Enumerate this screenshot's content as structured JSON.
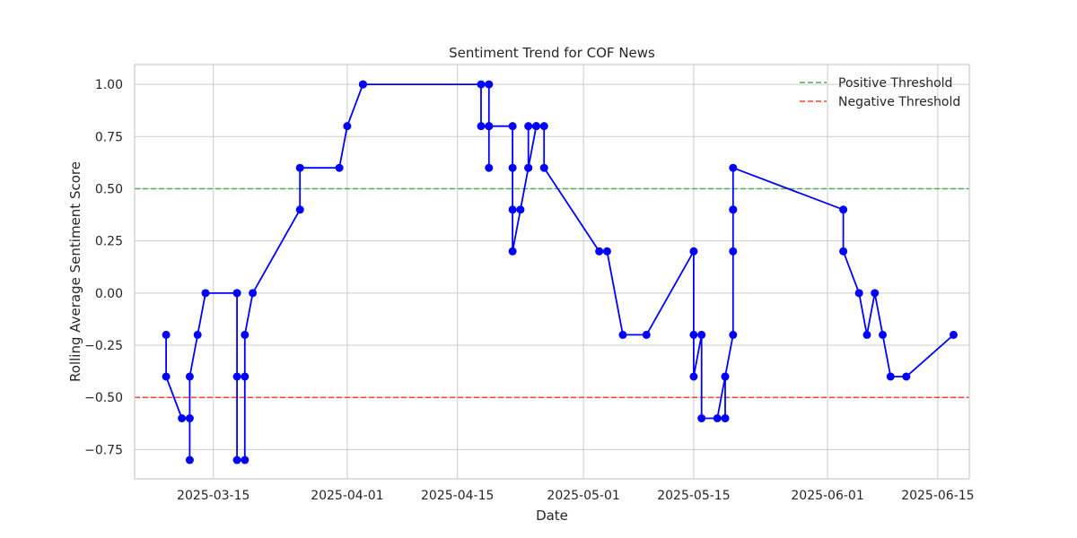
{
  "chart_data": {
    "type": "line",
    "title": "Sentiment Trend for COF News",
    "xlabel": "Date",
    "ylabel": "Rolling Average Sentiment Score",
    "xlim": [
      "2025-03-05",
      "2025-06-19"
    ],
    "ylim": [
      -0.89,
      1.095
    ],
    "x_ticks": [
      "2025-03-15",
      "2025-04-01",
      "2025-04-15",
      "2025-05-01",
      "2025-05-15",
      "2025-06-01",
      "2025-06-15"
    ],
    "y_ticks": [
      1.0,
      0.75,
      0.5,
      0.25,
      0.0,
      -0.25,
      -0.5,
      -0.75
    ],
    "y_tick_labels": [
      "1.00",
      "0.75",
      "0.50",
      "0.25",
      "0.00",
      "−0.25",
      "−0.50",
      "−0.75"
    ],
    "grid": true,
    "legend_position": "top-right",
    "series": [
      {
        "color": "#0000ff",
        "marker": "circle",
        "points": [
          [
            "2025-03-09",
            -0.2
          ],
          [
            "2025-03-09",
            -0.4
          ],
          [
            "2025-03-11",
            -0.6
          ],
          [
            "2025-03-12",
            -0.6
          ],
          [
            "2025-03-12",
            -0.8
          ],
          [
            "2025-03-12",
            -0.4
          ],
          [
            "2025-03-13",
            -0.2
          ],
          [
            "2025-03-14",
            0.0
          ],
          [
            "2025-03-18",
            0.0
          ],
          [
            "2025-03-18",
            0.0
          ],
          [
            "2025-03-18",
            -0.4
          ],
          [
            "2025-03-18",
            -0.8
          ],
          [
            "2025-03-19",
            -0.8
          ],
          [
            "2025-03-19",
            -0.4
          ],
          [
            "2025-03-19",
            -0.2
          ],
          [
            "2025-03-20",
            0.0
          ],
          [
            "2025-03-26",
            0.4
          ],
          [
            "2025-03-26",
            0.6
          ],
          [
            "2025-03-31",
            0.6
          ],
          [
            "2025-04-01",
            0.8
          ],
          [
            "2025-04-03",
            1.0
          ],
          [
            "2025-04-03",
            1.0
          ],
          [
            "2025-04-18",
            1.0
          ],
          [
            "2025-04-18",
            0.8
          ],
          [
            "2025-04-19",
            0.8
          ],
          [
            "2025-04-19",
            0.6
          ],
          [
            "2025-04-19",
            1.0
          ],
          [
            "2025-04-19",
            0.8
          ],
          [
            "2025-04-22",
            0.8
          ],
          [
            "2025-04-22",
            0.6
          ],
          [
            "2025-04-22",
            0.4
          ],
          [
            "2025-04-22",
            0.2
          ],
          [
            "2025-04-23",
            0.4
          ],
          [
            "2025-04-24",
            0.6
          ],
          [
            "2025-04-24",
            0.8
          ],
          [
            "2025-04-24",
            0.6
          ],
          [
            "2025-04-25",
            0.8
          ],
          [
            "2025-04-25",
            0.8
          ],
          [
            "2025-04-26",
            0.8
          ],
          [
            "2025-04-26",
            0.6
          ],
          [
            "2025-05-03",
            0.2
          ],
          [
            "2025-05-04",
            0.2
          ],
          [
            "2025-05-06",
            -0.2
          ],
          [
            "2025-05-09",
            -0.2
          ],
          [
            "2025-05-15",
            0.2
          ],
          [
            "2025-05-15",
            -0.2
          ],
          [
            "2025-05-15",
            -0.4
          ],
          [
            "2025-05-16",
            -0.2
          ],
          [
            "2025-05-16",
            -0.6
          ],
          [
            "2025-05-18",
            -0.6
          ],
          [
            "2025-05-19",
            -0.4
          ],
          [
            "2025-05-19",
            -0.6
          ],
          [
            "2025-05-19",
            -0.6
          ],
          [
            "2025-05-19",
            -0.4
          ],
          [
            "2025-05-20",
            -0.2
          ],
          [
            "2025-05-20",
            0.2
          ],
          [
            "2025-05-20",
            0.4
          ],
          [
            "2025-05-20",
            0.4
          ],
          [
            "2025-05-20",
            0.6
          ],
          [
            "2025-06-03",
            0.4
          ],
          [
            "2025-06-03",
            0.2
          ],
          [
            "2025-06-05",
            0.0
          ],
          [
            "2025-06-06",
            -0.2
          ],
          [
            "2025-06-07",
            0.0
          ],
          [
            "2025-06-08",
            -0.2
          ],
          [
            "2025-06-09",
            -0.4
          ],
          [
            "2025-06-11",
            -0.4
          ],
          [
            "2025-06-17",
            -0.2
          ]
        ]
      }
    ],
    "reference_lines": [
      {
        "name": "Positive Threshold",
        "y": 0.5,
        "color": "#4caf50",
        "style": "dashed"
      },
      {
        "name": "Negative Threshold",
        "y": -0.5,
        "color": "#f44336",
        "style": "dashed"
      }
    ],
    "legend": [
      "Positive Threshold",
      "Negative Threshold"
    ]
  }
}
